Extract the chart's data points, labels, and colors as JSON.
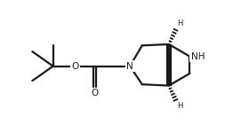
{
  "bg_color": "#ffffff",
  "line_color": "#1a1a1a",
  "line_width": 1.6,
  "font_size_label": 7.5,
  "font_size_H": 6.0,
  "fig_width": 2.62,
  "fig_height": 1.41,
  "xlim": [
    0,
    9.5
  ],
  "ylim": [
    0.5,
    5.2
  ]
}
